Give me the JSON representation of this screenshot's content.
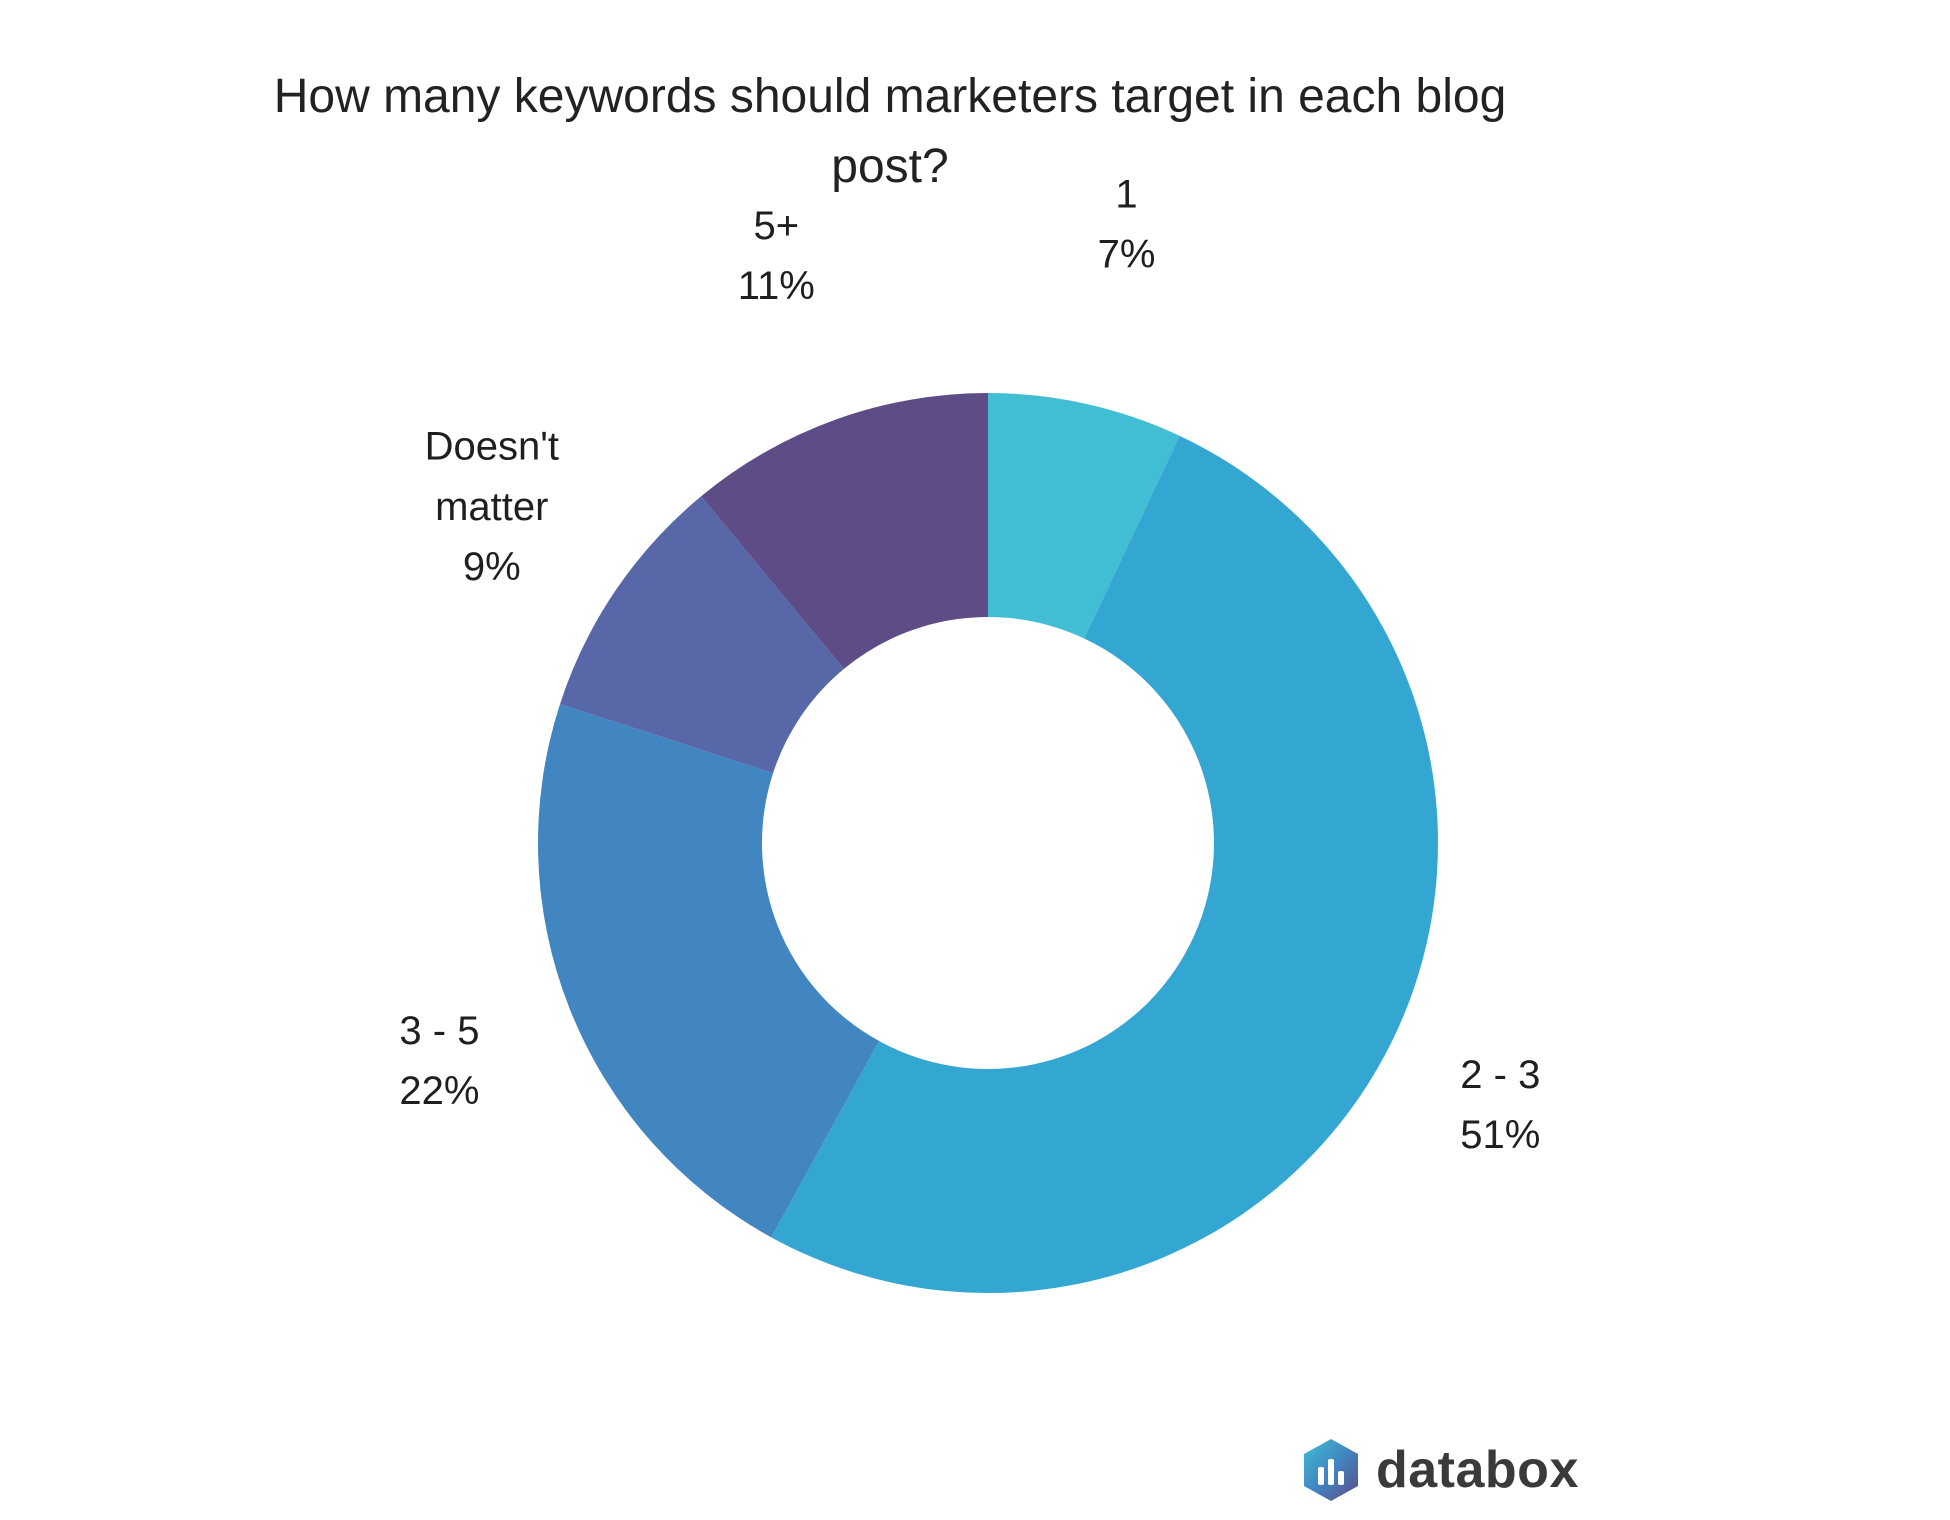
{
  "chart_data": {
    "type": "pie",
    "style": "donut",
    "title": "How many keywords should marketers target in each blog post?",
    "slices": [
      {
        "label": "1",
        "value": 7,
        "value_label": "7%",
        "color": "#41bed3"
      },
      {
        "label": "2 - 3",
        "value": 51,
        "value_label": "51%",
        "color": "#34a6d2"
      },
      {
        "label": "3 - 5",
        "value": 22,
        "value_label": "22%",
        "color": "#4185c1"
      },
      {
        "label": "Doesn't matter",
        "label_lines": [
          "Doesn't",
          "matter"
        ],
        "value": 9,
        "value_label": "9%",
        "color": "#5867a8"
      },
      {
        "label": "5+",
        "value": 11,
        "value_label": "11%",
        "color": "#5e4c87"
      }
    ],
    "legend": "none"
  },
  "branding": {
    "logo_icon": "databox-logo-icon",
    "name": "databox"
  }
}
